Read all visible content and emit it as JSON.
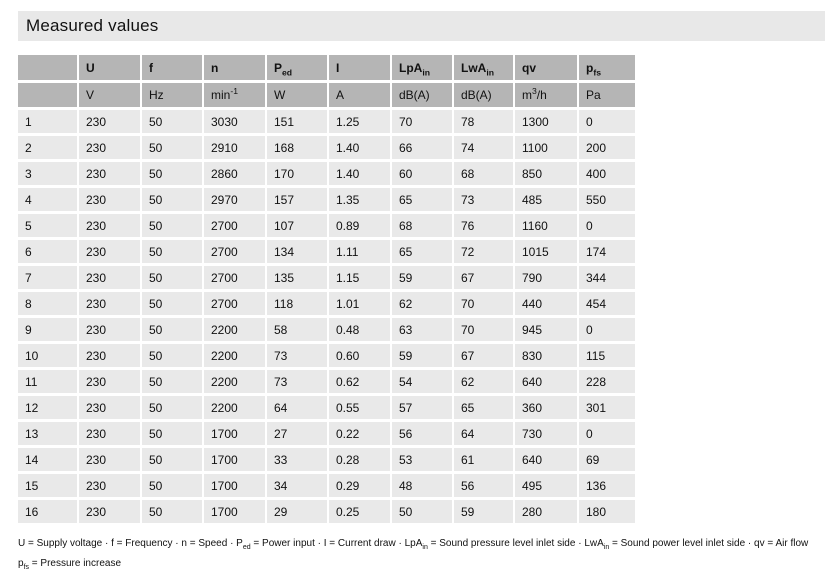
{
  "title": "Measured values",
  "colors": {
    "title_bg": "#e8e8e8",
    "header_bg": "#b5b5b5",
    "row_bg": "#e9e9e9",
    "text": "#111111"
  },
  "table": {
    "columns": [
      {
        "label": [],
        "unit": []
      },
      {
        "label": [
          {
            "t": "U"
          }
        ],
        "unit": [
          {
            "t": "V"
          }
        ]
      },
      {
        "label": [
          {
            "t": "f"
          }
        ],
        "unit": [
          {
            "t": "Hz"
          }
        ]
      },
      {
        "label": [
          {
            "t": "n"
          }
        ],
        "unit": [
          {
            "t": "min"
          },
          {
            "t": "-1",
            "s": "sup"
          }
        ]
      },
      {
        "label": [
          {
            "t": "P"
          },
          {
            "t": "ed",
            "s": "sub"
          }
        ],
        "unit": [
          {
            "t": "W"
          }
        ]
      },
      {
        "label": [
          {
            "t": "I"
          }
        ],
        "unit": [
          {
            "t": "A"
          }
        ]
      },
      {
        "label": [
          {
            "t": "LpA"
          },
          {
            "t": "in",
            "s": "sub"
          }
        ],
        "unit": [
          {
            "t": "dB(A)"
          }
        ]
      },
      {
        "label": [
          {
            "t": "LwA"
          },
          {
            "t": "in",
            "s": "sub"
          }
        ],
        "unit": [
          {
            "t": "dB(A)"
          }
        ]
      },
      {
        "label": [
          {
            "t": "qv"
          }
        ],
        "unit": [
          {
            "t": "m"
          },
          {
            "t": "3",
            "s": "sup"
          },
          {
            "t": "/h"
          }
        ]
      },
      {
        "label": [
          {
            "t": "p"
          },
          {
            "t": "fs",
            "s": "sub"
          }
        ],
        "unit": [
          {
            "t": "Pa"
          }
        ]
      }
    ],
    "rows": [
      [
        "1",
        "230",
        "50",
        "3030",
        "151",
        "1.25",
        "70",
        "78",
        "1300",
        "0"
      ],
      [
        "2",
        "230",
        "50",
        "2910",
        "168",
        "1.40",
        "66",
        "74",
        "1100",
        "200"
      ],
      [
        "3",
        "230",
        "50",
        "2860",
        "170",
        "1.40",
        "60",
        "68",
        "850",
        "400"
      ],
      [
        "4",
        "230",
        "50",
        "2970",
        "157",
        "1.35",
        "65",
        "73",
        "485",
        "550"
      ],
      [
        "5",
        "230",
        "50",
        "2700",
        "107",
        "0.89",
        "68",
        "76",
        "1160",
        "0"
      ],
      [
        "6",
        "230",
        "50",
        "2700",
        "134",
        "1.11",
        "65",
        "72",
        "1015",
        "174"
      ],
      [
        "7",
        "230",
        "50",
        "2700",
        "135",
        "1.15",
        "59",
        "67",
        "790",
        "344"
      ],
      [
        "8",
        "230",
        "50",
        "2700",
        "118",
        "1.01",
        "62",
        "70",
        "440",
        "454"
      ],
      [
        "9",
        "230",
        "50",
        "2200",
        "58",
        "0.48",
        "63",
        "70",
        "945",
        "0"
      ],
      [
        "10",
        "230",
        "50",
        "2200",
        "73",
        "0.60",
        "59",
        "67",
        "830",
        "115"
      ],
      [
        "11",
        "230",
        "50",
        "2200",
        "73",
        "0.62",
        "54",
        "62",
        "640",
        "228"
      ],
      [
        "12",
        "230",
        "50",
        "2200",
        "64",
        "0.55",
        "57",
        "65",
        "360",
        "301"
      ],
      [
        "13",
        "230",
        "50",
        "1700",
        "27",
        "0.22",
        "56",
        "64",
        "730",
        "0"
      ],
      [
        "14",
        "230",
        "50",
        "1700",
        "33",
        "0.28",
        "53",
        "61",
        "640",
        "69"
      ],
      [
        "15",
        "230",
        "50",
        "1700",
        "34",
        "0.29",
        "48",
        "56",
        "495",
        "136"
      ],
      [
        "16",
        "230",
        "50",
        "1700",
        "29",
        "0.25",
        "50",
        "59",
        "280",
        "180"
      ]
    ]
  },
  "footnote": {
    "line1": [
      {
        "t": "U = Supply voltage · f = Frequency · n = Speed · P"
      },
      {
        "t": "ed",
        "s": "sub"
      },
      {
        "t": " = Power input · I = Current draw · LpA"
      },
      {
        "t": "in",
        "s": "sub"
      },
      {
        "t": " = Sound pressure level inlet side · LwA"
      },
      {
        "t": "in",
        "s": "sub"
      },
      {
        "t": " = Sound power level inlet side · qv = Air flow"
      }
    ],
    "line2": [
      {
        "t": "p"
      },
      {
        "t": "fs",
        "s": "sub"
      },
      {
        "t": " = Pressure increase"
      }
    ]
  }
}
